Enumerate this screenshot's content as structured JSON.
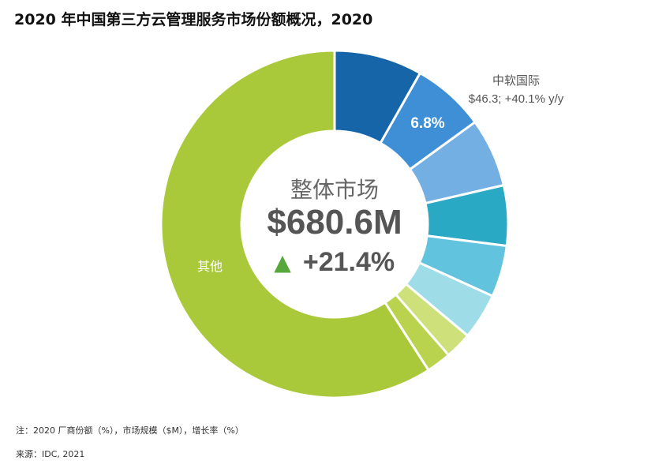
{
  "header": {
    "title": "2020 年中国第三方云管理服务市场份额概况，2020"
  },
  "center": {
    "label": "整体市场",
    "total": "$680.6M",
    "arrow": "▲",
    "growth": "+21.4%"
  },
  "callout": {
    "name": "中软国际",
    "detail": "$46.3; +40.1% y/y"
  },
  "notes": {
    "note": "注：2020 厂商份额（%），市场规模（$M），增长率（%）",
    "source": "来源：IDC, 2021"
  },
  "chart_data": {
    "type": "pie",
    "title": "2020 年中国第三方云管理服务市场份额概况，2020",
    "total": "$680.6M",
    "growth": "+21.4%",
    "series": [
      {
        "labels": [
          "",
          "中软国际",
          "",
          "",
          "",
          "",
          "",
          "",
          "其他"
        ],
        "values": [
          8.2,
          6.8,
          6.4,
          5.6,
          4.8,
          4.3,
          2.5,
          2.3,
          59.1
        ],
        "data_labels": [
          "",
          "6.8%",
          "",
          "",
          "",
          "",
          "",
          "",
          ""
        ],
        "colors": [
          "#1565a8",
          "#3e8fd6",
          "#74afe3",
          "#2aa9c4",
          "#62c3df",
          "#9edde8",
          "#cde07a",
          "#b9d34e",
          "#a9c93a"
        ]
      }
    ]
  }
}
